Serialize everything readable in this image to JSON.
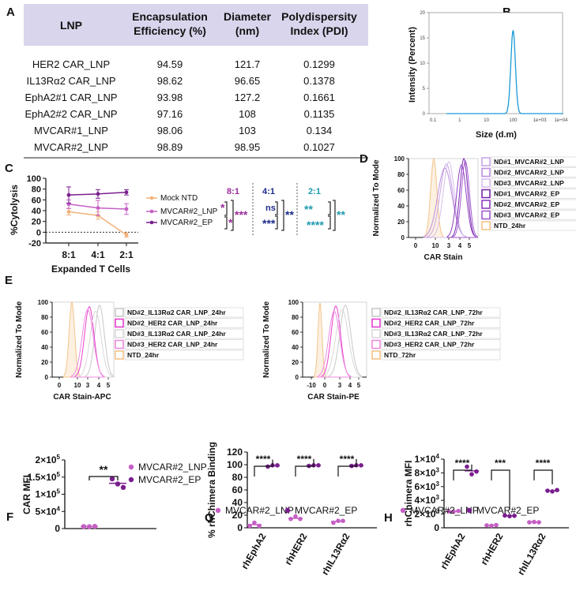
{
  "panel_labels": [
    "A",
    "B",
    "C",
    "D",
    "E",
    "F",
    "G",
    "H"
  ],
  "table": {
    "headers": [
      "LNP",
      "Encapsulation Efficiency (%)",
      "Diameter (nm)",
      "Polydispersity Index (PDI)"
    ],
    "header_lines": [
      [
        "LNP"
      ],
      [
        "Encapsulation",
        "Efficiency (%)"
      ],
      [
        "Diameter",
        "(nm)"
      ],
      [
        "Polydispersity",
        "Index (PDI)"
      ]
    ],
    "rows": [
      [
        "HER2 CAR_LNP",
        "94.59",
        "121.7",
        "0.1299"
      ],
      [
        "IL13Rα2 CAR_LNP",
        "98.62",
        "96.65",
        "0.1378"
      ],
      [
        "EphA2#1 CAR_LNP",
        "93.98",
        "127.2",
        "0.1661"
      ],
      [
        "EphA2#2 CAR_LNP",
        "97.16",
        "108",
        "0.1135"
      ],
      [
        "MVCAR#1_LNP",
        "98.06",
        "103",
        "0.134"
      ],
      [
        "MVCAR#2_LNP",
        "98.89",
        "98.95",
        "0.1027"
      ]
    ],
    "header_bg": "#d9d5ec"
  },
  "chart_data": [
    {
      "id": "B",
      "type": "line",
      "title": "",
      "xlabel": "Size (d.m)",
      "ylabel": "Intensity (Percent)",
      "x_scale": "log",
      "x_ticks": [
        0.1,
        1,
        10,
        100,
        1000,
        10000
      ],
      "x_tick_labels": [
        "0.1",
        "1",
        "10",
        "100",
        "1e+03",
        "1e+04"
      ],
      "y_ticks": [
        0,
        5,
        10,
        15,
        20
      ],
      "ylim": [
        0,
        20
      ],
      "peak_center": 100,
      "peak_height": 16.5,
      "color": "#1a9bd7"
    },
    {
      "id": "C",
      "type": "line",
      "xlabel": "Expanded T Cells",
      "ylabel": "%Cytolysis",
      "categories": [
        "8:1",
        "4:1",
        "2:1"
      ],
      "ylim": [
        -20,
        100
      ],
      "y_ticks": [
        -20,
        0,
        20,
        40,
        60,
        80,
        100
      ],
      "series": [
        {
          "name": "Mock NTD",
          "values": [
            38,
            31,
            -5
          ],
          "err": [
            6,
            7,
            4
          ],
          "color": "#f2b27a"
        },
        {
          "name": "MVCAR#2_LNP",
          "values": [
            52,
            45,
            43
          ],
          "err": [
            8,
            14,
            10
          ],
          "color": "#c55fc5"
        },
        {
          "name": "MVCAR#2_EP",
          "values": [
            69,
            71,
            74
          ],
          "err": [
            15,
            8,
            5
          ],
          "color": "#7a1e8f"
        }
      ],
      "annotations": {
        "groups": [
          {
            "label": "8:1",
            "color": "#9a2a9a",
            "marks": [
              "*",
              "*",
              "***"
            ]
          },
          {
            "label": "4:1",
            "color": "#1c2a8a",
            "marks": [
              "ns",
              "***",
              "**"
            ]
          },
          {
            "label": "2:1",
            "color": "#1e9ab0",
            "marks": [
              "**",
              "****",
              "**"
            ]
          }
        ]
      }
    },
    {
      "id": "D",
      "type": "area",
      "xlabel": "CAR Stain",
      "ylabel": "Normalized To Mode",
      "y_ticks": [
        0,
        20,
        40,
        60,
        80,
        100
      ],
      "x_tick_labels": [
        "0",
        "10",
        "3",
        "4",
        "5"
      ],
      "x_tick_exps": [
        "",
        "3",
        "",
        "",
        ""
      ],
      "legend": [
        {
          "name": "ND#1_MVCAR#2_LNP",
          "color": "#c9a6e6"
        },
        {
          "name": "ND#2_MVCAR#2_LNP",
          "color": "#bc8fdf"
        },
        {
          "name": "ND#3_MVCAR#2_LNP",
          "color": "#d7bfee"
        },
        {
          "name": "ND#1_MVCAR#2_EP",
          "color": "#7a2ab0"
        },
        {
          "name": "ND#2_MVCAR#2_EP",
          "color": "#9040c0"
        },
        {
          "name": "ND#3_MVCAR#2_EP",
          "color": "#a35ad0"
        },
        {
          "name": "NTD_24hr",
          "color": "#f5c389"
        }
      ]
    },
    {
      "id": "E1",
      "type": "area",
      "xlabel": "CAR Stain-APC",
      "ylabel": "Normalized To Mode",
      "y_ticks": [
        0,
        20,
        40,
        60,
        80,
        100
      ],
      "x_tick_labels": [
        "0",
        "10",
        "3",
        "4",
        "5"
      ],
      "legend": [
        {
          "name": "ND#2_IL13Rα2 CAR_LNP_24hr",
          "color": "#c8c8c8"
        },
        {
          "name": "ND#2_HER2 CAR_LNP_24hr",
          "color": "#e83fd0"
        },
        {
          "name": "ND#3_IL13Rα2 CAR_LNP_24hr",
          "color": "#d8d8d8"
        },
        {
          "name": "ND#3_HER2 CAR_LNP_24hr",
          "color": "#f08ae0"
        },
        {
          "name": "NTD_24hr",
          "color": "#f5c389"
        }
      ]
    },
    {
      "id": "E2",
      "type": "area",
      "xlabel": "CAR Stain-PE",
      "ylabel": "Normalized To Mode",
      "y_ticks": [
        0,
        20,
        40,
        60,
        80,
        100
      ],
      "x_tick_labels": [
        "-10",
        "0",
        "3",
        "4",
        "5"
      ],
      "legend": [
        {
          "name": "ND#2_IL13Rα2 CAR_LNP_72hr",
          "color": "#c8c8c8"
        },
        {
          "name": "ND#2_HER2 CAR_LNP_72hr",
          "color": "#e83fd0"
        },
        {
          "name": "ND#3_IL13Rα2 CAR_LNP_72hr",
          "color": "#d8d8d8"
        },
        {
          "name": "ND#3_HER2 CAR_LNP_72hr",
          "color": "#f08ae0"
        },
        {
          "name": "NTD_72hr",
          "color": "#f5c389"
        }
      ]
    },
    {
      "id": "F",
      "type": "scatter",
      "ylabel": "CAR MFI",
      "y_tick_bases": [
        "0",
        "5×10",
        "1×10",
        "1.5×10",
        "2×10"
      ],
      "y_tick_exps": [
        "",
        "4",
        "5",
        "5",
        "5"
      ],
      "ylim": [
        0,
        200000
      ],
      "series": [
        {
          "name": "MVCAR#2_LNP",
          "values": [
            6000,
            5500,
            6500
          ],
          "mean": 6000,
          "color": "#c55fc5"
        },
        {
          "name": "MVCAR#2_EP",
          "values": [
            145000,
            130000,
            120000
          ],
          "mean": 132000,
          "color": "#7a1e8f"
        }
      ],
      "significance": "**"
    },
    {
      "id": "G",
      "type": "scatter",
      "ylabel": "% rhChimera Binding",
      "categories": [
        "rhEphA2",
        "rhHER2",
        "rhIL13Rα2"
      ],
      "ylim": [
        0,
        120
      ],
      "y_ticks": [
        0,
        20,
        40,
        60,
        80,
        100,
        120
      ],
      "series": [
        {
          "name": "MVCAR#2_LNP",
          "values": [
            [
              3,
              8,
              3
            ],
            [
              14,
              18,
              14
            ],
            [
              8,
              11,
              11
            ]
          ],
          "means": [
            5,
            15,
            10
          ],
          "color": "#c55fc5"
        },
        {
          "name": "MVCAR#2_EP",
          "values": [
            [
              97,
              99,
              99
            ],
            [
              98,
              99,
              99
            ],
            [
              98,
              99,
              99
            ]
          ],
          "means": [
            98,
            99,
            99
          ],
          "color": "#7a1e8f"
        }
      ],
      "significance": [
        "****",
        "****",
        "****"
      ]
    },
    {
      "id": "H",
      "type": "scatter",
      "ylabel": "rhChimera MFI",
      "categories": [
        "rhEphA2",
        "rhHER2",
        "rhIL13Rα2"
      ],
      "ylim": [
        0,
        10000
      ],
      "y_tick_bases": [
        "0",
        "2×10",
        "4×10",
        "6×10",
        "8×10",
        "1×10"
      ],
      "y_tick_exps": [
        "",
        "3",
        "3",
        "3",
        "3",
        "4"
      ],
      "series": [
        {
          "name": "MVCAR#2_LNP",
          "values": [
            [
              2400,
              2350,
              2450
            ],
            [
              350,
              300,
              400
            ],
            [
              800,
              850,
              800
            ]
          ],
          "means": [
            2400,
            350,
            820
          ],
          "color": "#c55fc5"
        },
        {
          "name": "MVCAR#2_EP",
          "values": [
            [
              8900,
              7800,
              8200
            ],
            [
              1800,
              1700,
              1750
            ],
            [
              5400,
              5300,
              5500
            ]
          ],
          "means": [
            8300,
            1750,
            5400
          ],
          "color": "#7a1e8f"
        }
      ],
      "significance": [
        "****",
        "***",
        "****"
      ]
    }
  ],
  "legends": {
    "F": [
      "MVCAR#2_LNP",
      "MVCAR#2_EP"
    ],
    "G": [
      "MVCAR#2_LNP",
      "MVCAR#2_EP"
    ],
    "H": [
      "MVCAR#2_LNP",
      "MVCAR#2_EP"
    ]
  }
}
